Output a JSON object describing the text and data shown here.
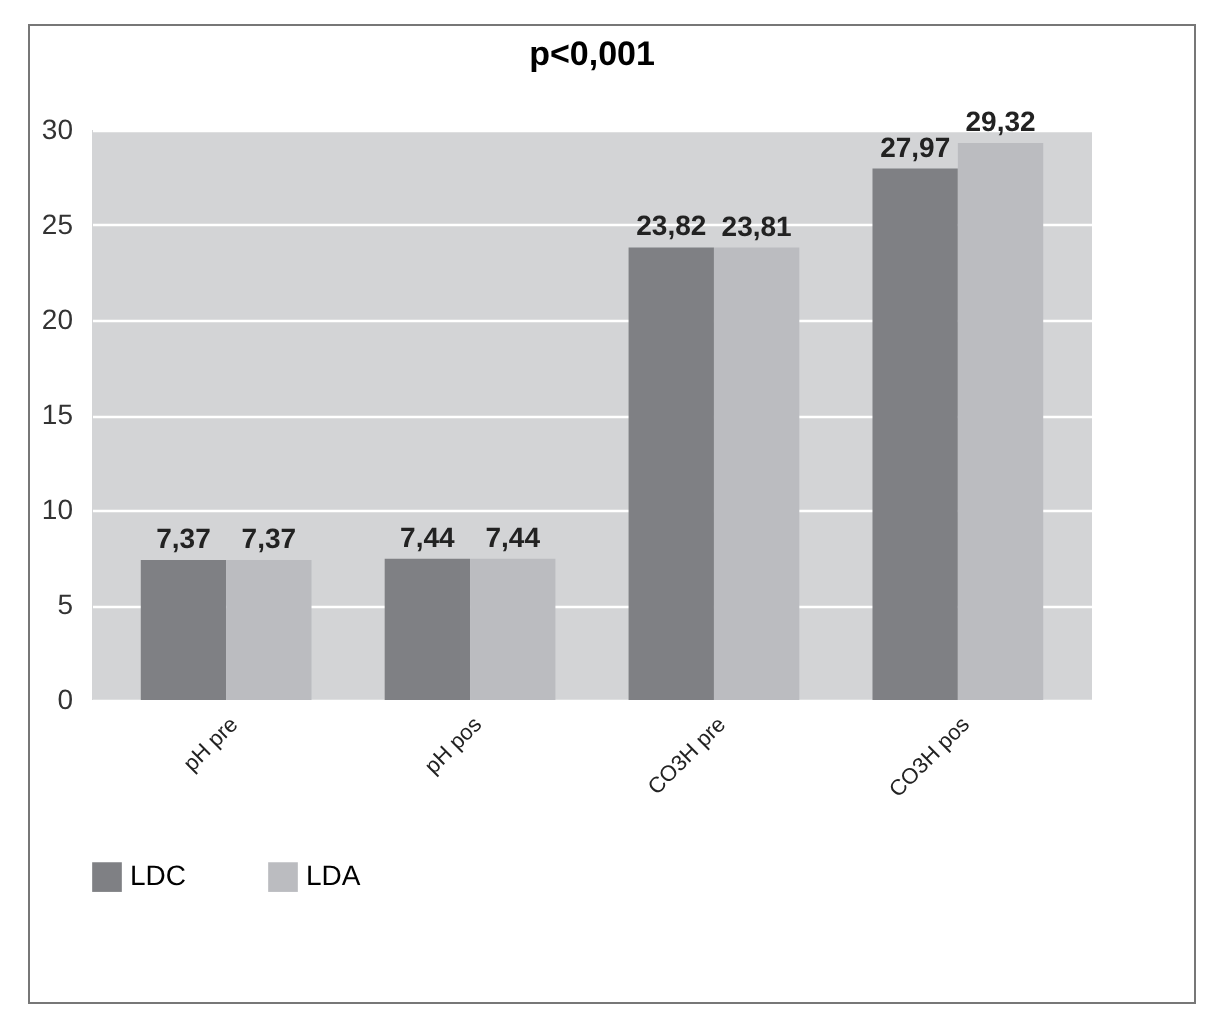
{
  "chart_data": {
    "type": "bar",
    "title": "p<0,001",
    "categories": [
      "pH pre",
      "pH pos",
      "CO3H pre",
      "CO3H pos"
    ],
    "series": [
      {
        "name": "LDC",
        "color": "#7f8084",
        "values": [
          7.37,
          7.44,
          23.82,
          27.97
        ],
        "value_labels": [
          "7,37",
          "7,44",
          "23,82",
          "27,97"
        ]
      },
      {
        "name": "LDA",
        "color": "#bbbcc0",
        "values": [
          7.37,
          7.44,
          23.81,
          29.32
        ],
        "value_labels": [
          "7,37",
          "7,44",
          "23,81",
          "29,32"
        ]
      }
    ],
    "ylim": [
      0,
      30
    ],
    "yticks": [
      0,
      5,
      10,
      15,
      20,
      25,
      30
    ],
    "grid": "y",
    "legend": "bottom"
  }
}
